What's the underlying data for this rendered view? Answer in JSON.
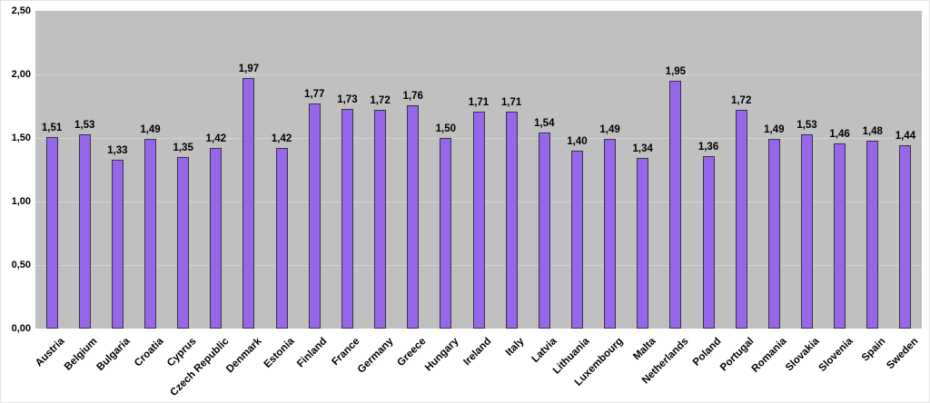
{
  "chart_data": {
    "type": "bar",
    "title": "",
    "xlabel": "",
    "ylabel": "",
    "legend": "none",
    "grid": true,
    "decimal_separator": ",",
    "ylim": [
      0,
      2.5
    ],
    "y_ticks": [
      {
        "value": 0.0,
        "label": "0,00"
      },
      {
        "value": 0.5,
        "label": "0,50"
      },
      {
        "value": 1.0,
        "label": "1,00"
      },
      {
        "value": 1.5,
        "label": "1,50"
      },
      {
        "value": 2.0,
        "label": "2,00"
      },
      {
        "value": 2.5,
        "label": "2,50"
      }
    ],
    "categories": [
      "Austria",
      "Belgium",
      "Bulgaria",
      "Croatia",
      "Cyprus",
      "Czech Republic",
      "Denmark",
      "Estonia",
      "Finland",
      "France",
      "Germany",
      "Greece",
      "Hungary",
      "Ireland",
      "Italy",
      "Latvia",
      "Lithuania",
      "Luxembourg",
      "Malta",
      "Netherlands",
      "Poland",
      "Portugal",
      "Romania",
      "Slovakia",
      "Slovenia",
      "Spain",
      "Sweden"
    ],
    "values": [
      1.51,
      1.53,
      1.33,
      1.49,
      1.35,
      1.42,
      1.97,
      1.42,
      1.77,
      1.73,
      1.72,
      1.76,
      1.5,
      1.71,
      1.71,
      1.54,
      1.4,
      1.49,
      1.34,
      1.95,
      1.36,
      1.72,
      1.49,
      1.53,
      1.46,
      1.48,
      1.44
    ],
    "value_labels": [
      "1,51",
      "1,53",
      "1,33",
      "1,49",
      "1,35",
      "1,42",
      "1,97",
      "1,42",
      "1,77",
      "1,73",
      "1,72",
      "1,76",
      "1,50",
      "1,71",
      "1,71",
      "1,54",
      "1,40",
      "1,49",
      "1,34",
      "1,95",
      "1,36",
      "1,72",
      "1,49",
      "1,53",
      "1,46",
      "1,48",
      "1,44"
    ],
    "colors": {
      "bar_fill": "#9666EB",
      "bar_border": "#3C3244",
      "plot_background": "#C0C0C0",
      "gridline": "#D3D3D3",
      "page_background": "#FFFFFF",
      "text": "#000000"
    }
  }
}
